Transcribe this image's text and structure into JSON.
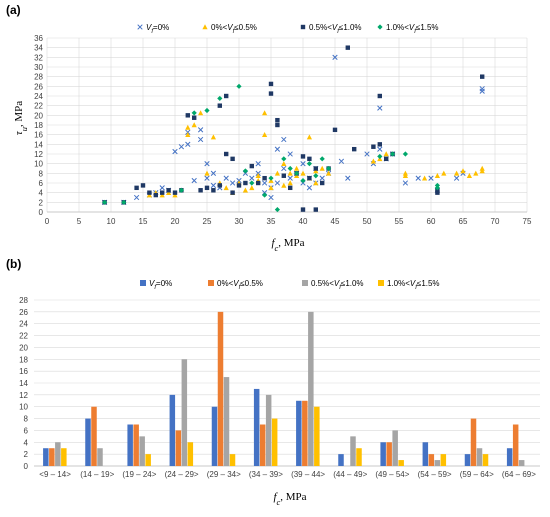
{
  "chart_data": [
    {
      "type": "scatter",
      "panel": "(a)",
      "ylabel": "τu, MPa",
      "xlabel": "fc, MPa",
      "xlim": [
        0,
        75
      ],
      "ylim": [
        0,
        36
      ],
      "xticks": [
        0,
        5,
        10,
        15,
        20,
        25,
        30,
        35,
        40,
        45,
        50,
        55,
        60,
        65,
        70,
        75
      ],
      "yticks": [
        0,
        2,
        4,
        6,
        8,
        10,
        12,
        14,
        16,
        18,
        20,
        22,
        24,
        26,
        28,
        30,
        32,
        34,
        36
      ],
      "grid": true,
      "legend_position": "top",
      "series": [
        {
          "name": "Vf=0%",
          "color": "#4472c4",
          "marker": "x",
          "points": [
            [
              9,
              2
            ],
            [
              12,
              2
            ],
            [
              14,
              3
            ],
            [
              16,
              3.5
            ],
            [
              17,
              4
            ],
            [
              18,
              5
            ],
            [
              19,
              4.5
            ],
            [
              20,
              12.5
            ],
            [
              21,
              13.5
            ],
            [
              22,
              14
            ],
            [
              22,
              16.5
            ],
            [
              23,
              6.5
            ],
            [
              24,
              17
            ],
            [
              24,
              15
            ],
            [
              25,
              10
            ],
            [
              25,
              7
            ],
            [
              26,
              8
            ],
            [
              26,
              5.5
            ],
            [
              27,
              5
            ],
            [
              28,
              7
            ],
            [
              29,
              6
            ],
            [
              30,
              6.5
            ],
            [
              31,
              8
            ],
            [
              32,
              7
            ],
            [
              33,
              8
            ],
            [
              33,
              10
            ],
            [
              34,
              6
            ],
            [
              34,
              4
            ],
            [
              35,
              5
            ],
            [
              35,
              3
            ],
            [
              36,
              13
            ],
            [
              36,
              6
            ],
            [
              37,
              15
            ],
            [
              37,
              9
            ],
            [
              38,
              7
            ],
            [
              38,
              12
            ],
            [
              39,
              8
            ],
            [
              40,
              6
            ],
            [
              40,
              10
            ],
            [
              41,
              5
            ],
            [
              41,
              7
            ],
            [
              42,
              9
            ],
            [
              42,
              6
            ],
            [
              43,
              7
            ],
            [
              44,
              8
            ],
            [
              45,
              32
            ],
            [
              46,
              10.5
            ],
            [
              47,
              7
            ],
            [
              50,
              12
            ],
            [
              51,
              10
            ],
            [
              52,
              21.5
            ],
            [
              52,
              13
            ],
            [
              53,
              11
            ],
            [
              54,
              12
            ],
            [
              56,
              6
            ],
            [
              58,
              7
            ],
            [
              60,
              7
            ],
            [
              61,
              4.5
            ],
            [
              64,
              7
            ],
            [
              65,
              8
            ],
            [
              68,
              25
            ],
            [
              68,
              25.5
            ]
          ]
        },
        {
          "name": "0%<Vf≤0.5%",
          "color": "#ffc000",
          "marker": "triangle",
          "points": [
            [
              16,
              3.5
            ],
            [
              17,
              4
            ],
            [
              18,
              3.5
            ],
            [
              19,
              4
            ],
            [
              20,
              3.5
            ],
            [
              22,
              16
            ],
            [
              22,
              17.5
            ],
            [
              23,
              18
            ],
            [
              24,
              20.5
            ],
            [
              25,
              8
            ],
            [
              26,
              15.5
            ],
            [
              27,
              6
            ],
            [
              28,
              5
            ],
            [
              29,
              4
            ],
            [
              30,
              6
            ],
            [
              31,
              4.5
            ],
            [
              32,
              5
            ],
            [
              33,
              6.5
            ],
            [
              33,
              7.5
            ],
            [
              34,
              16
            ],
            [
              34,
              20.5
            ],
            [
              35,
              5
            ],
            [
              35,
              6.5
            ],
            [
              36,
              8
            ],
            [
              37,
              5.5
            ],
            [
              37,
              10
            ],
            [
              38,
              6
            ],
            [
              38,
              8
            ],
            [
              39,
              7.5
            ],
            [
              39,
              9
            ],
            [
              40,
              8
            ],
            [
              41,
              7
            ],
            [
              41,
              15.5
            ],
            [
              42,
              6
            ],
            [
              42,
              8.5
            ],
            [
              43,
              9
            ],
            [
              44,
              8
            ],
            [
              51,
              10.5
            ],
            [
              52,
              11
            ],
            [
              53,
              12
            ],
            [
              56,
              8
            ],
            [
              56,
              7.5
            ],
            [
              59,
              7
            ],
            [
              61,
              7.5
            ],
            [
              62,
              8
            ],
            [
              64,
              8
            ],
            [
              65,
              8.5
            ],
            [
              66,
              7.5
            ],
            [
              67,
              8
            ],
            [
              68,
              8.5
            ],
            [
              68,
              9
            ]
          ]
        },
        {
          "name": "0.5%<Vf≤1.0%",
          "color": "#1f3864",
          "marker": "square",
          "points": [
            [
              9,
              2
            ],
            [
              12,
              2
            ],
            [
              14,
              5
            ],
            [
              15,
              5.5
            ],
            [
              16,
              4
            ],
            [
              17,
              3.5
            ],
            [
              18,
              4
            ],
            [
              19,
              4.5
            ],
            [
              20,
              4
            ],
            [
              21,
              4.5
            ],
            [
              22,
              20
            ],
            [
              23,
              19.5
            ],
            [
              24,
              4.5
            ],
            [
              25,
              5
            ],
            [
              26,
              4.5
            ],
            [
              27,
              5.5
            ],
            [
              27,
              22
            ],
            [
              28,
              12
            ],
            [
              28,
              24
            ],
            [
              29,
              11
            ],
            [
              29,
              4
            ],
            [
              30,
              5.5
            ],
            [
              31,
              6
            ],
            [
              32,
              9.5
            ],
            [
              33,
              6
            ],
            [
              34,
              7
            ],
            [
              35,
              24.5
            ],
            [
              35,
              26.5
            ],
            [
              36,
              18
            ],
            [
              36,
              19
            ],
            [
              37,
              7.5
            ],
            [
              38,
              5
            ],
            [
              39,
              8
            ],
            [
              40,
              11.5
            ],
            [
              40,
              0.5
            ],
            [
              41,
              7
            ],
            [
              41,
              11
            ],
            [
              42,
              0.5
            ],
            [
              42,
              9
            ],
            [
              43,
              6
            ],
            [
              44,
              9
            ],
            [
              45,
              17
            ],
            [
              47,
              34
            ],
            [
              48,
              13
            ],
            [
              51,
              13.5
            ],
            [
              52,
              24
            ],
            [
              52,
              14
            ],
            [
              53,
              11
            ],
            [
              54,
              12
            ],
            [
              61,
              4.5
            ],
            [
              61,
              4
            ],
            [
              68,
              28
            ]
          ]
        },
        {
          "name": "1.0%<Vf≤1.5%",
          "color": "#00a86b",
          "marker": "diamond",
          "points": [
            [
              9,
              2
            ],
            [
              12,
              2
            ],
            [
              21,
              4.5
            ],
            [
              23,
              20.5
            ],
            [
              25,
              21
            ],
            [
              27,
              23.5
            ],
            [
              30,
              26
            ],
            [
              31,
              8.5
            ],
            [
              32,
              6
            ],
            [
              34,
              3.5
            ],
            [
              35,
              7
            ],
            [
              36,
              0.5
            ],
            [
              37,
              11
            ],
            [
              38,
              9
            ],
            [
              39,
              8
            ],
            [
              40,
              6.5
            ],
            [
              41,
              10
            ],
            [
              42,
              7.5
            ],
            [
              43,
              11
            ],
            [
              44,
              9
            ],
            [
              52,
              11.5
            ],
            [
              54,
              12
            ],
            [
              56,
              12
            ],
            [
              61,
              5
            ],
            [
              61,
              5.5
            ]
          ]
        }
      ]
    },
    {
      "type": "bar",
      "panel": "(b)",
      "xlabel": "fc, MPa",
      "ylim": [
        0,
        28
      ],
      "yticks": [
        0,
        2,
        4,
        6,
        8,
        10,
        12,
        14,
        16,
        18,
        20,
        22,
        24,
        26,
        28
      ],
      "grid": true,
      "legend_position": "top",
      "categories": [
        "<9 – 14>",
        "(14 – 19>",
        "(19 – 24>",
        "(24 – 29>",
        "(29 – 34>",
        "(34 – 39>",
        "(39 – 44>",
        "(44 – 49>",
        "(49 – 54>",
        "(54 – 59>",
        "(59 – 64>",
        "(64 – 69>"
      ],
      "series": [
        {
          "name": "Vf=0%",
          "color": "#4472c4",
          "values": [
            3,
            8,
            7,
            12,
            10,
            13,
            11,
            2,
            4,
            4,
            2,
            3
          ]
        },
        {
          "name": "0%<Vf≤0.5%",
          "color": "#ed7d31",
          "values": [
            3,
            10,
            7,
            6,
            26,
            7,
            11,
            0,
            4,
            2,
            8,
            7
          ]
        },
        {
          "name": "0.5%<Vf≤1.0%",
          "color": "#a5a5a5",
          "values": [
            4,
            3,
            5,
            18,
            15,
            12,
            26,
            5,
            6,
            1,
            3,
            1
          ]
        },
        {
          "name": "1.0%<Vf≤1.5%",
          "color": "#ffc000",
          "values": [
            3,
            0,
            2,
            4,
            2,
            8,
            10,
            3,
            1,
            2,
            2,
            0
          ]
        }
      ]
    }
  ]
}
